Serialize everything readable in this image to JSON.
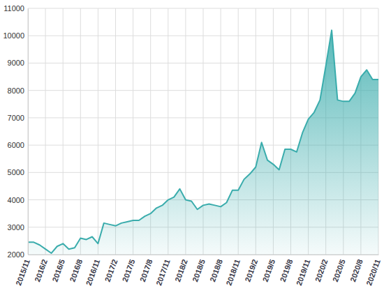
{
  "chart_data": {
    "type": "area",
    "color": "#3aacac",
    "grid": true,
    "categories": [
      "2015/11",
      null,
      null,
      "2016/2",
      null,
      null,
      "2016/5",
      null,
      null,
      "2016/8",
      null,
      null,
      "2016/11",
      null,
      null,
      "2017/2",
      null,
      null,
      "2017/5",
      null,
      null,
      "2017/8",
      null,
      null,
      "2017/11",
      null,
      null,
      "2018/2",
      null,
      null,
      "2018/5",
      null,
      null,
      "2018/8",
      null,
      null,
      "2018/11",
      null,
      null,
      "2019/2",
      null,
      null,
      "2019/5",
      null,
      null,
      "2019/8",
      null,
      null,
      "2019/11",
      null,
      null,
      "2020/2",
      null,
      null,
      "2020/5",
      null,
      null,
      "2020/8",
      null,
      null,
      "2020/11"
    ],
    "values": [
      2450,
      2450,
      2350,
      2200,
      2050,
      2300,
      2400,
      2200,
      2250,
      2600,
      2550,
      2650,
      2400,
      3150,
      3100,
      3050,
      3150,
      3200,
      3250,
      3250,
      3400,
      3500,
      3700,
      3800,
      4000,
      4100,
      4400,
      4000,
      3950,
      3650,
      3800,
      3850,
      3800,
      3750,
      3900,
      4350,
      4350,
      4750,
      4950,
      5200,
      6100,
      5450,
      5300,
      5100,
      5850,
      5850,
      5750,
      6450,
      6950,
      7200,
      7650,
      8900,
      10200,
      7650,
      7600,
      7600,
      7900,
      8500,
      8750,
      8400,
      8400
    ],
    "ylim": [
      2000,
      11000
    ],
    "yticks": [
      2000,
      3000,
      4000,
      5000,
      6000,
      7000,
      8000,
      9000,
      10000,
      11000
    ]
  }
}
